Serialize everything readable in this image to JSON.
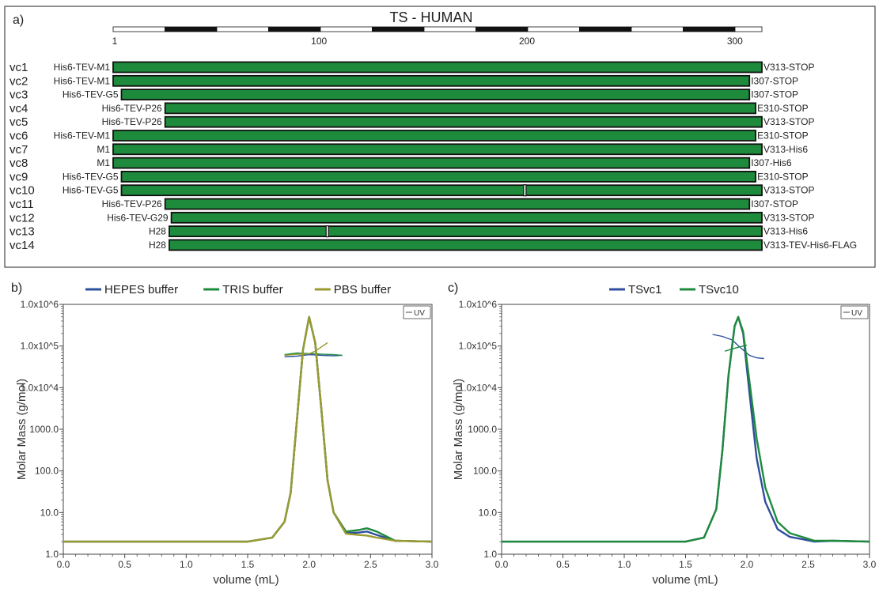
{
  "panel_a": {
    "label": "a)",
    "title": "TS - HUMAN",
    "ruler_ticks": [
      {
        "pos": 1,
        "label": "1"
      },
      {
        "pos": 100,
        "label": "100"
      },
      {
        "pos": 200,
        "label": "200"
      },
      {
        "pos": 300,
        "label": "300"
      }
    ],
    "constructs": [
      {
        "name": "vc1",
        "left": "His6-TEV-M1",
        "start": 1,
        "end": 313,
        "right": "V313-STOP",
        "marker": null
      },
      {
        "name": "vc2",
        "left": "His6-TEV-M1",
        "start": 1,
        "end": 307,
        "right": "I307-STOP",
        "marker": null
      },
      {
        "name": "vc3",
        "left": "His6-TEV-G5",
        "start": 5,
        "end": 307,
        "right": "I307-STOP",
        "marker": null
      },
      {
        "name": "vc4",
        "left": "His6-TEV-P26",
        "start": 26,
        "end": 310,
        "right": "E310-STOP",
        "marker": null
      },
      {
        "name": "vc5",
        "left": "His6-TEV-P26",
        "start": 26,
        "end": 313,
        "right": "V313-STOP",
        "marker": null
      },
      {
        "name": "vc6",
        "left": "His6-TEV-M1",
        "start": 1,
        "end": 310,
        "right": "E310-STOP",
        "marker": null
      },
      {
        "name": "vc7",
        "left": "M1",
        "start": 1,
        "end": 313,
        "right": "V313-His6",
        "marker": null
      },
      {
        "name": "vc8",
        "left": "M1",
        "start": 1,
        "end": 307,
        "right": "I307-His6",
        "marker": null
      },
      {
        "name": "vc9",
        "left": "His6-TEV-G5",
        "start": 5,
        "end": 310,
        "right": "E310-STOP",
        "marker": null
      },
      {
        "name": "vc10",
        "left": "His6-TEV-G5",
        "start": 5,
        "end": 313,
        "right": "V313-STOP",
        "marker": 199
      },
      {
        "name": "vc11",
        "left": "His6-TEV-P26",
        "start": 26,
        "end": 307,
        "right": "I307-STOP",
        "marker": null
      },
      {
        "name": "vc12",
        "left": "His6-TEV-G29",
        "start": 29,
        "end": 313,
        "right": "V313-STOP",
        "marker": null
      },
      {
        "name": "vc13",
        "left": "H28",
        "start": 28,
        "end": 313,
        "right": "V313-His6",
        "marker": 104
      },
      {
        "name": "vc14",
        "left": "H28",
        "start": 28,
        "end": 313,
        "right": "V313-TEV-His6-FLAG",
        "marker": null
      }
    ],
    "bar_color": "#1e8a3c"
  },
  "chart_data": [
    {
      "panel": "b)",
      "type": "line",
      "xlabel": "volume (mL)",
      "ylabel": "Molar Mass (g/mol)",
      "x_ticks": [
        "0.0",
        "0.5",
        "1.0",
        "1.5",
        "2.0",
        "2.5",
        "3.0"
      ],
      "y_ticks": [
        "1.0",
        "10.0",
        "100.0",
        "1000.0",
        "1.0x10^4",
        "1.0x10^5",
        "1.0x10^6"
      ],
      "xlim": [
        0,
        3
      ],
      "ylim": [
        1,
        1000000
      ],
      "y_scale": "log",
      "legend_box": "UV",
      "series": [
        {
          "name": "HEPES buffer",
          "color": "#2e4f9e",
          "x": [
            0,
            1.5,
            1.7,
            1.8,
            1.85,
            1.9,
            1.95,
            2.0,
            2.05,
            2.1,
            2.15,
            2.2,
            2.3,
            2.4,
            2.47,
            2.55,
            2.7,
            3.0
          ],
          "y": [
            2,
            2,
            2.5,
            6,
            30,
            1500,
            80000,
            500000,
            120000,
            3000,
            60,
            10,
            3.2,
            3.3,
            3.5,
            2.9,
            2.1,
            2
          ],
          "mass_x": [
            1.8,
            1.9,
            2.0,
            2.1,
            2.2,
            2.27
          ],
          "mass_y": [
            55000,
            57000,
            62000,
            60000,
            58000,
            60000
          ]
        },
        {
          "name": "TRIS buffer",
          "color": "#1e8a3c",
          "x": [
            0,
            1.5,
            1.7,
            1.8,
            1.85,
            1.9,
            1.95,
            2.0,
            2.05,
            2.1,
            2.15,
            2.2,
            2.3,
            2.4,
            2.47,
            2.55,
            2.7,
            3.0
          ],
          "y": [
            2,
            2,
            2.5,
            6,
            30,
            1500,
            80000,
            500000,
            120000,
            3000,
            60,
            10,
            3.5,
            3.8,
            4.2,
            3.5,
            2.1,
            2
          ],
          "mass_x": [
            1.8,
            1.9,
            2.0,
            2.1,
            2.2,
            2.27
          ],
          "mass_y": [
            62000,
            68000,
            66000,
            64000,
            62000,
            60000
          ]
        },
        {
          "name": "PBS buffer",
          "color": "#9a9a30",
          "x": [
            0,
            1.5,
            1.7,
            1.8,
            1.85,
            1.9,
            1.95,
            2.0,
            2.05,
            2.1,
            2.15,
            2.2,
            2.3,
            2.4,
            2.47,
            2.55,
            2.7,
            3.0
          ],
          "y": [
            2,
            2,
            2.5,
            6,
            30,
            1500,
            80000,
            500000,
            120000,
            3000,
            60,
            10,
            3.1,
            2.9,
            2.8,
            2.5,
            2.1,
            2
          ],
          "mass_x": [
            1.8,
            1.9,
            2.0,
            2.05,
            2.1,
            2.15
          ],
          "mass_y": [
            60000,
            63000,
            65000,
            75000,
            95000,
            120000
          ]
        }
      ]
    },
    {
      "panel": "c)",
      "type": "line",
      "xlabel": "volume (mL)",
      "ylabel": "Molar Mass (g/mol)",
      "x_ticks": [
        "0.0",
        "0.5",
        "1.0",
        "1.5",
        "2.0",
        "2.5",
        "3.0"
      ],
      "y_ticks": [
        "1.0",
        "10.0",
        "100.0",
        "1000.0",
        "1.0x10^4",
        "1.0x10^5",
        "1.0x10^6"
      ],
      "xlim": [
        0,
        3
      ],
      "ylim": [
        1,
        1000000
      ],
      "y_scale": "log",
      "legend_box": "UV",
      "series": [
        {
          "name": "TSvc1",
          "color": "#2e4f9e",
          "x": [
            0,
            1.5,
            1.65,
            1.75,
            1.8,
            1.85,
            1.9,
            1.93,
            1.97,
            2.02,
            2.08,
            2.15,
            2.25,
            2.35,
            2.45,
            2.55,
            2.7,
            3.0
          ],
          "y": [
            2,
            2,
            2.5,
            12,
            300,
            20000,
            300000,
            500000,
            200000,
            8000,
            200,
            18,
            4,
            2.6,
            2.3,
            2.0,
            2.1,
            2
          ],
          "mass_x": [
            1.72,
            1.8,
            1.88,
            1.95,
            2.02,
            2.08,
            2.14
          ],
          "mass_y": [
            190000,
            170000,
            140000,
            90000,
            60000,
            52000,
            50000
          ]
        },
        {
          "name": "TSvc10",
          "color": "#1e8a3c",
          "x": [
            0,
            1.5,
            1.65,
            1.75,
            1.8,
            1.85,
            1.9,
            1.93,
            1.97,
            2.02,
            2.08,
            2.15,
            2.25,
            2.35,
            2.45,
            2.55,
            2.7,
            3.0
          ],
          "y": [
            2,
            2,
            2.5,
            12,
            300,
            20000,
            300000,
            500000,
            220000,
            15000,
            600,
            40,
            6,
            3.2,
            2.6,
            2.1,
            2.1,
            2
          ],
          "mass_x": [
            1.82,
            1.88,
            1.94,
            2.0
          ],
          "mass_y": [
            75000,
            85000,
            95000,
            105000
          ]
        }
      ]
    }
  ]
}
